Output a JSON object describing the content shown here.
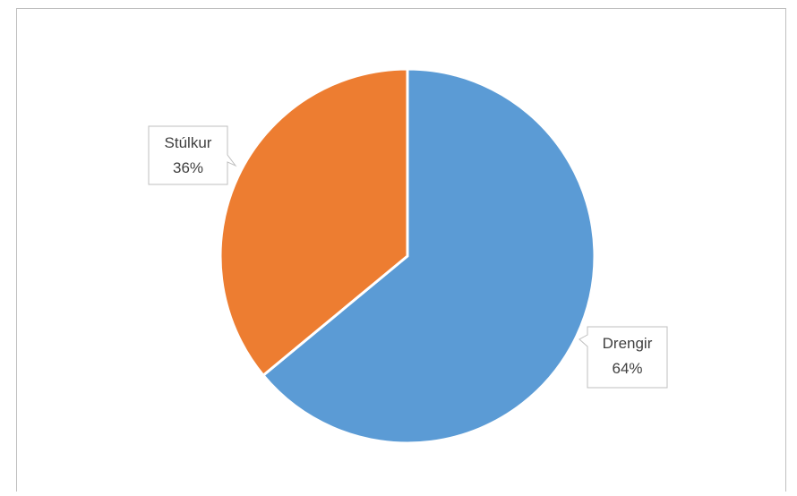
{
  "chart_data": {
    "type": "pie",
    "categories": [
      "Drengir",
      "Stúlkur"
    ],
    "values": [
      64,
      36
    ],
    "value_labels": [
      "64%",
      "36%"
    ],
    "colors": [
      "#5b9bd5",
      "#ed7d31"
    ],
    "start_angle_deg": 0,
    "direction": "clockwise",
    "data_labels": "callout",
    "title": "",
    "legend": "none"
  }
}
